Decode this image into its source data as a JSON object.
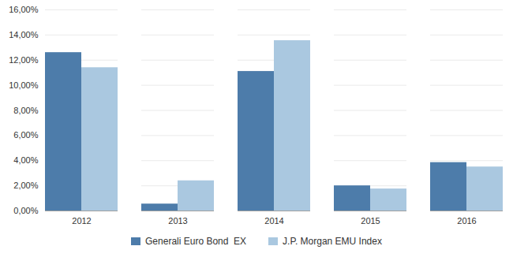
{
  "chart_data": {
    "type": "bar",
    "categories": [
      "2012",
      "2013",
      "2014",
      "2015",
      "2016"
    ],
    "series": [
      {
        "name": "Generali Euro Bond  EX",
        "color": "#4d7caa",
        "values": [
          0.126,
          0.0055,
          0.111,
          0.02,
          0.0385
        ]
      },
      {
        "name": "J.P. Morgan EMU Index",
        "color": "#aac8e0",
        "values": [
          0.114,
          0.024,
          0.1355,
          0.0175,
          0.035
        ]
      }
    ],
    "ylim": [
      0.0,
      0.16
    ],
    "yticks": [
      {
        "value": 0.0,
        "label": "0,00%"
      },
      {
        "value": 0.02,
        "label": "2,00%"
      },
      {
        "value": 0.04,
        "label": "4,00%"
      },
      {
        "value": 0.06,
        "label": "6,00%"
      },
      {
        "value": 0.08,
        "label": "8,00%"
      },
      {
        "value": 0.1,
        "label": "10,00%"
      },
      {
        "value": 0.12,
        "label": "12,00%"
      },
      {
        "value": 0.14,
        "label": "14,00%"
      },
      {
        "value": 0.16,
        "label": "16,00%"
      }
    ],
    "grid": true,
    "legend": "bottom"
  }
}
